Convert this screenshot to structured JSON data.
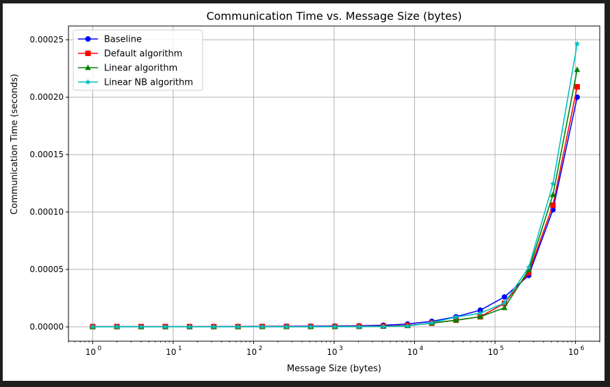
{
  "chart_data": {
    "type": "line",
    "title": "Communication Time vs. Message Size (bytes)",
    "xlabel": "Message Size (bytes)",
    "ylabel": "Communication Time (seconds)",
    "x_scale": "log",
    "xlim": [
      0.5,
      2000000
    ],
    "ylim": [
      -1.25e-05,
      0.000262
    ],
    "grid": true,
    "legend_position": "upper-left",
    "x_ticks": [
      {
        "value": 1,
        "label": "10",
        "exp": "0"
      },
      {
        "value": 10,
        "label": "10",
        "exp": "1"
      },
      {
        "value": 100,
        "label": "10",
        "exp": "2"
      },
      {
        "value": 1000,
        "label": "10",
        "exp": "3"
      },
      {
        "value": 10000,
        "label": "10",
        "exp": "4"
      },
      {
        "value": 100000,
        "label": "10",
        "exp": "5"
      },
      {
        "value": 1000000,
        "label": "10",
        "exp": "6"
      }
    ],
    "y_ticks": [
      {
        "value": 0,
        "label": "0.00000"
      },
      {
        "value": 5e-05,
        "label": "0.00005"
      },
      {
        "value": 0.0001,
        "label": "0.00010"
      },
      {
        "value": 0.00015,
        "label": "0.00015"
      },
      {
        "value": 0.0002,
        "label": "0.00020"
      },
      {
        "value": 0.00025,
        "label": "0.00025"
      }
    ],
    "x": [
      1,
      2,
      4,
      8,
      16,
      32,
      64,
      128,
      256,
      512,
      1024,
      2048,
      4096,
      8192,
      16384,
      32768,
      65536,
      131072,
      262144,
      524288,
      1048576
    ],
    "series": [
      {
        "name": "Baseline",
        "color": "#0000ff",
        "marker": "circle",
        "values": [
          2e-07,
          2e-07,
          2e-07,
          2e-07,
          2e-07,
          3e-07,
          3e-07,
          4e-07,
          5e-07,
          6e-07,
          7e-07,
          9e-07,
          1.4e-06,
          2.4e-06,
          4.8e-06,
          8.8e-06,
          1.45e-05,
          2.6e-05,
          4.48e-05,
          0.000102,
          0.0002
        ]
      },
      {
        "name": "Default algorithm",
        "color": "#ff0000",
        "marker": "square",
        "values": [
          2e-07,
          2e-07,
          2e-07,
          2e-07,
          2e-07,
          2e-07,
          2e-07,
          3e-07,
          3e-07,
          3e-07,
          3e-07,
          4e-07,
          6e-07,
          1.2e-06,
          3.2e-06,
          5.8e-06,
          8.8e-06,
          2.05e-05,
          4.72e-05,
          0.000106,
          0.000209
        ]
      },
      {
        "name": "Linear algorithm",
        "color": "#008000",
        "marker": "triangle",
        "values": [
          1e-07,
          1e-07,
          1e-07,
          1e-07,
          1e-07,
          1e-07,
          1e-07,
          1e-07,
          1e-07,
          1e-07,
          2e-07,
          2e-07,
          4e-07,
          9e-07,
          3.2e-06,
          5.8e-06,
          8.8e-06,
          1.66e-05,
          4.95e-05,
          0.000115,
          0.000224
        ]
      },
      {
        "name": "Linear NB algorithm",
        "color": "#00bfbf",
        "marker": "star",
        "values": [
          1e-07,
          1e-07,
          1e-07,
          1e-07,
          1e-07,
          1e-07,
          1e-07,
          1e-07,
          1e-07,
          1e-07,
          1e-07,
          1e-07,
          3e-07,
          7e-07,
          3.6e-06,
          8.5e-06,
          1.18e-05,
          2.08e-05,
          5.18e-05,
          0.0001245,
          0.0002465
        ]
      }
    ]
  }
}
